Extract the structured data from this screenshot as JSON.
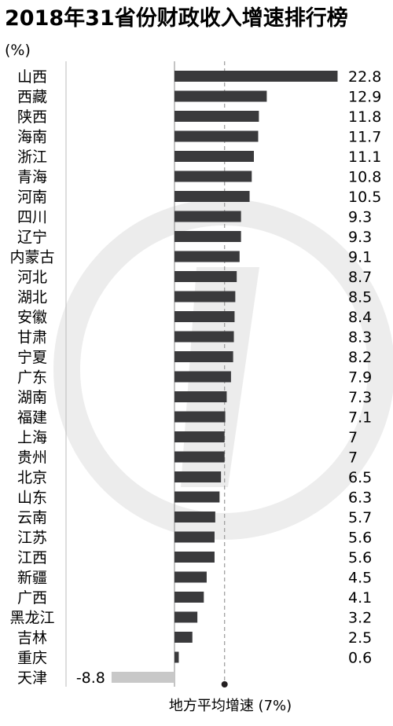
{
  "chart_data": {
    "type": "bar",
    "orientation": "horizontal",
    "title": "2018年31省份财政收入增速排行榜",
    "unit_label": "(%)",
    "categories": [
      "山西",
      "西藏",
      "陕西",
      "海南",
      "浙江",
      "青海",
      "河南",
      "四川",
      "辽宁",
      "内蒙古",
      "河北",
      "湖北",
      "安徽",
      "甘肃",
      "宁夏",
      "广东",
      "湖南",
      "福建",
      "上海",
      "贵州",
      "北京",
      "山东",
      "云南",
      "江苏",
      "江西",
      "新疆",
      "广西",
      "黑龙江",
      "吉林",
      "重庆",
      "天津"
    ],
    "values": [
      22.8,
      12.9,
      11.8,
      11.7,
      11.1,
      10.8,
      10.5,
      9.3,
      9.3,
      9.1,
      8.7,
      8.5,
      8.4,
      8.3,
      8.2,
      7.9,
      7.3,
      7.1,
      7,
      7,
      6.5,
      6.3,
      5.7,
      5.6,
      5.6,
      4.5,
      4.1,
      3.2,
      2.5,
      0.6,
      -8.8
    ],
    "value_labels": [
      "22.8",
      "12.9",
      "11.8",
      "11.7",
      "11.1",
      "10.8",
      "10.5",
      "9.3",
      "9.3",
      "9.1",
      "8.7",
      "8.5",
      "8.4",
      "8.3",
      "8.2",
      "7.9",
      "7.3",
      "7.1",
      "7",
      "7",
      "6.5",
      "6.3",
      "5.7",
      "5.6",
      "5.6",
      "4.5",
      "4.1",
      "3.2",
      "2.5",
      "0.6",
      "-8.8"
    ],
    "reference_line": {
      "value": 7,
      "label": "地方平均增速 (7%)"
    },
    "colors": {
      "positive": "#3a3a3c",
      "negative": "#c8c8c8",
      "reference": "#9a9a9a",
      "axis": "#8a8a8a"
    }
  }
}
